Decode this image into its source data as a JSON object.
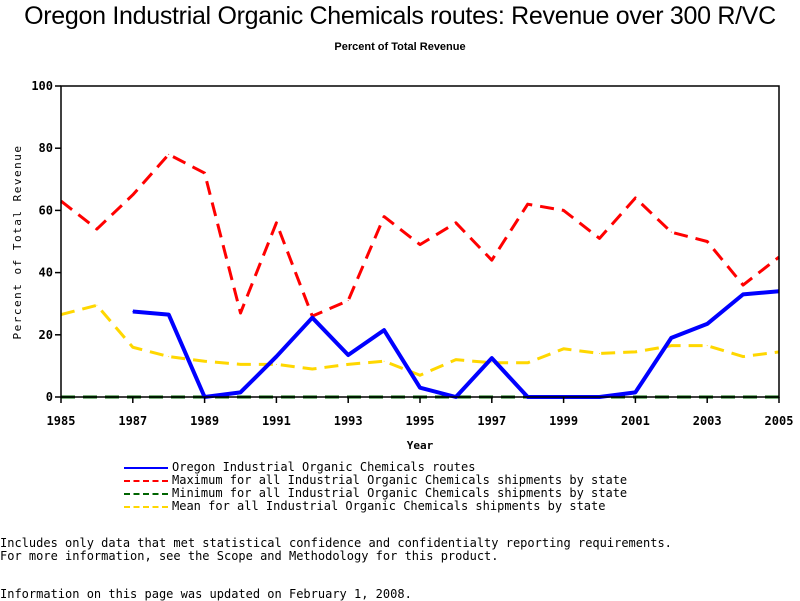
{
  "chart_data": {
    "type": "line",
    "title": "Oregon Industrial Organic Chemicals routes: Revenue over 300 R/VC",
    "subtitle": "Percent of Total Revenue",
    "xlabel": "Year",
    "ylabel": "Percent of Total Revenue",
    "xlim": [
      1985,
      2005
    ],
    "ylim": [
      0,
      100
    ],
    "x_ticks": [
      "1985",
      "1987",
      "1989",
      "1991",
      "1993",
      "1995",
      "1997",
      "1999",
      "2001",
      "2003",
      "2005"
    ],
    "y_ticks": [
      "0",
      "20",
      "40",
      "60",
      "80",
      "100"
    ],
    "grid": false,
    "legend_position": "bottom",
    "x": [
      1985,
      1986,
      1987,
      1988,
      1989,
      1990,
      1991,
      1992,
      1993,
      1994,
      1995,
      1996,
      1997,
      1998,
      1999,
      2000,
      2001,
      2002,
      2003,
      2004,
      2005
    ],
    "series": [
      {
        "name": "Oregon Industrial Organic Chemicals routes",
        "color": "#0000ff",
        "style": "solid",
        "values": [
          null,
          null,
          27.5,
          26.5,
          0,
          1.5,
          13,
          25.5,
          13.5,
          21.5,
          3,
          0,
          12.5,
          0,
          0,
          0,
          1.5,
          19,
          23.5,
          33,
          34
        ]
      },
      {
        "name": "Maximum for all Industrial Organic Chemicals shipments by state",
        "color": "#ff0000",
        "style": "dashed",
        "values": [
          63,
          54,
          65,
          78,
          72,
          27,
          56,
          26,
          31,
          58,
          49,
          56,
          44,
          62,
          60,
          51,
          64,
          53,
          50,
          36,
          45
        ]
      },
      {
        "name": "Minimum for all Industrial Organic Chemicals shipments by state",
        "color": "#006400",
        "style": "dashed",
        "values": [
          0,
          0,
          0,
          0,
          0,
          0,
          0,
          0,
          0,
          0,
          0,
          0,
          0,
          0,
          0,
          0,
          0,
          0,
          0,
          0,
          0
        ]
      },
      {
        "name": "Mean for all Industrial Organic Chemicals shipments by state",
        "color": "#ffd700",
        "style": "dashed",
        "values": [
          26.5,
          29.5,
          16,
          13,
          11.5,
          10.5,
          10.5,
          9,
          10.5,
          11.5,
          7,
          12,
          11,
          11,
          15.5,
          14,
          14.5,
          16.5,
          16.5,
          13,
          14.5
        ]
      }
    ]
  },
  "footnotes": {
    "line1": "Includes only data that met statistical confidence and confidentialty reporting requirements.",
    "line2": "For more information, see the Scope and Methodology for this product.",
    "updated": "Information on this page was updated on February 1, 2008."
  }
}
